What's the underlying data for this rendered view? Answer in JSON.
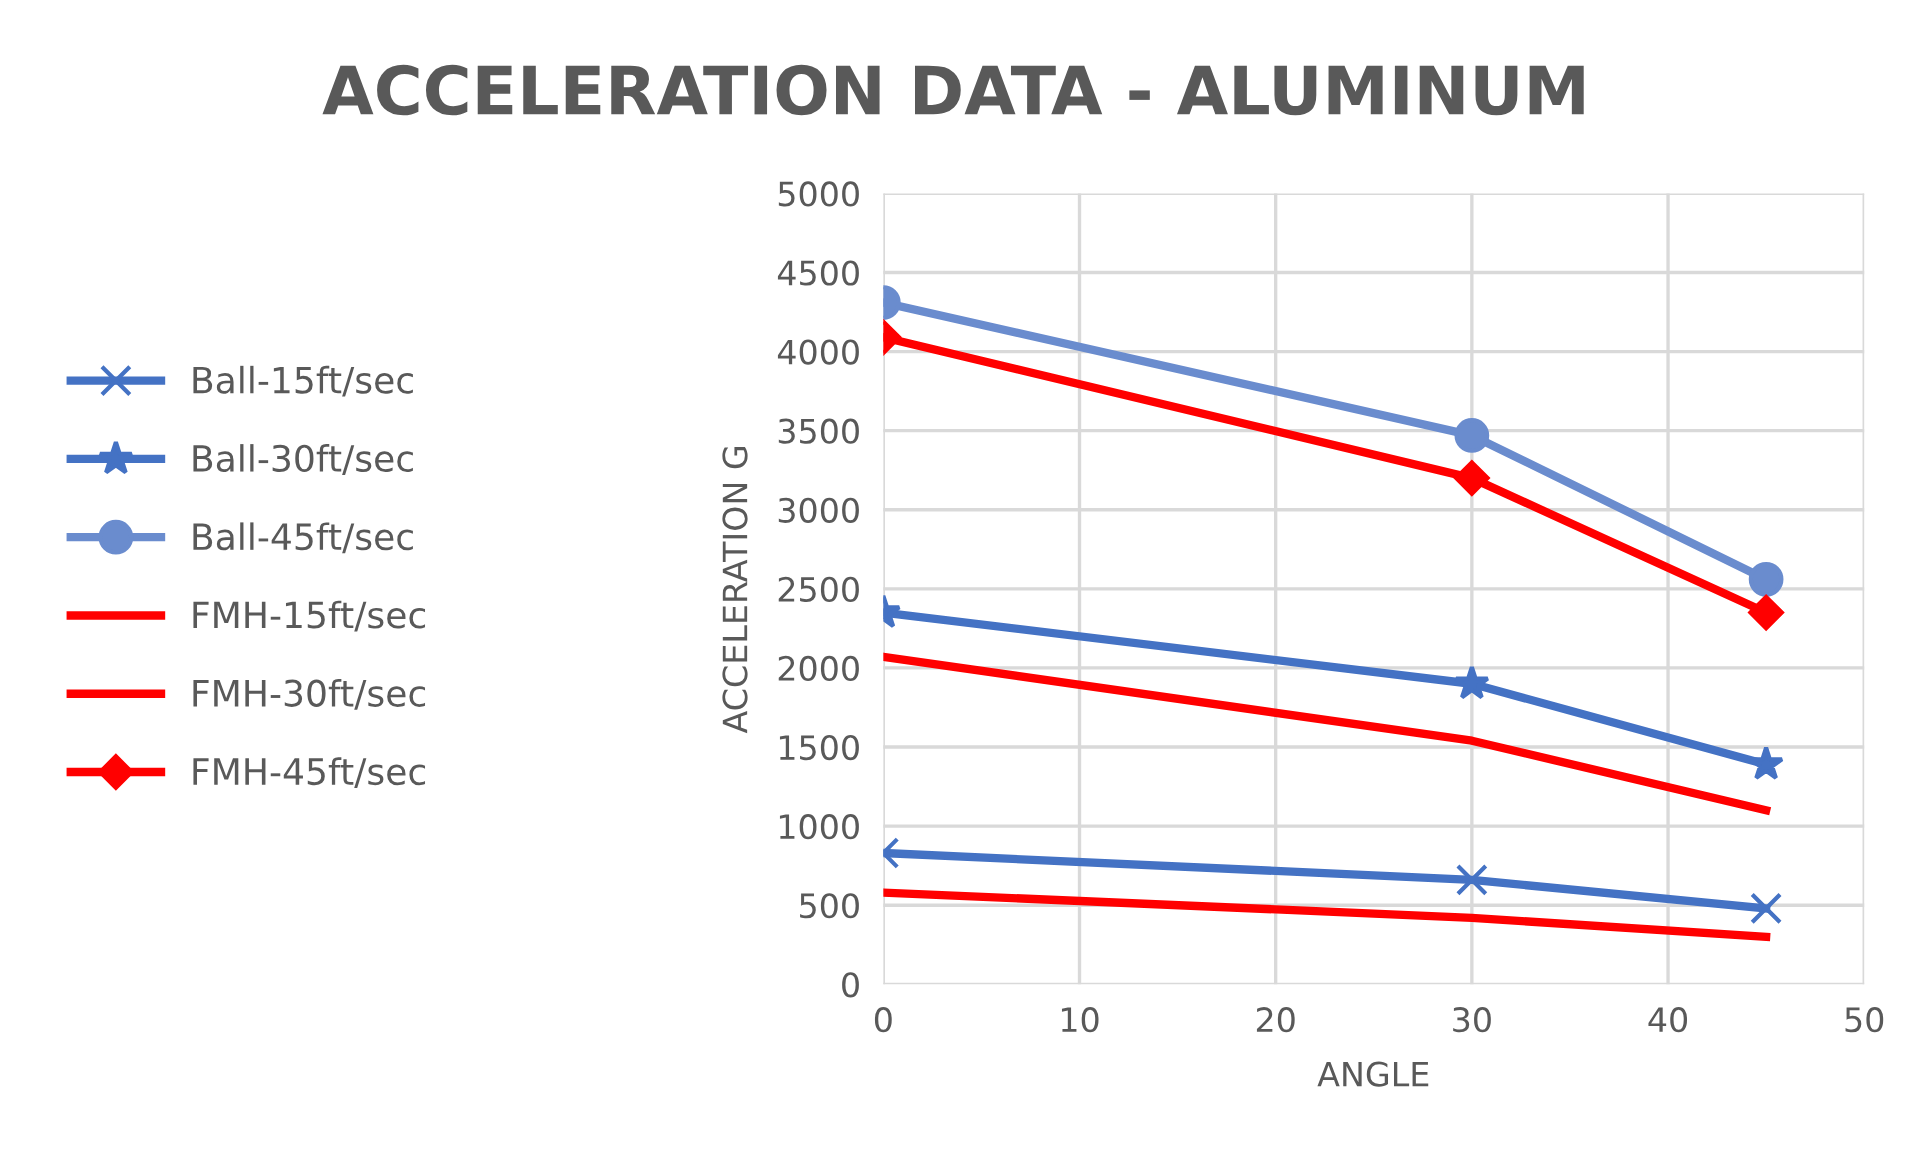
{
  "chart_data": {
    "type": "line",
    "title": "ACCELERATION DATA - ALUMINUM",
    "xlabel": "ANGLE",
    "ylabel": "ACCELERATION G",
    "x": [
      0,
      30,
      45
    ],
    "xlim": [
      0,
      50
    ],
    "xticks": [
      0,
      10,
      20,
      30,
      40,
      50
    ],
    "ylim": [
      0,
      5000
    ],
    "yticks": [
      0,
      500,
      1000,
      1500,
      2000,
      2500,
      3000,
      3500,
      4000,
      4500,
      5000
    ],
    "grid": true,
    "legend": "left",
    "series": [
      {
        "name": "Ball-15ft/sec",
        "color": "#4472c4",
        "marker": "cross",
        "values": [
          830,
          660,
          480
        ]
      },
      {
        "name": "Ball-30ft/sec",
        "color": "#4472c4",
        "marker": "star",
        "values": [
          2350,
          1900,
          1390
        ]
      },
      {
        "name": "Ball-45ft/sec",
        "color": "#6a8cce",
        "marker": "circle",
        "values": [
          4310,
          3470,
          2560
        ]
      },
      {
        "name": "FMH-15ft/sec",
        "color": "#ff0000",
        "marker": "none",
        "values": [
          580,
          420,
          300
        ]
      },
      {
        "name": "FMH-30ft/sec",
        "color": "#ff0000",
        "marker": "none",
        "values": [
          2070,
          1540,
          1100
        ]
      },
      {
        "name": "FMH-45ft/sec",
        "color": "#ff0000",
        "marker": "diamond",
        "values": [
          4090,
          3200,
          2350
        ]
      }
    ]
  }
}
